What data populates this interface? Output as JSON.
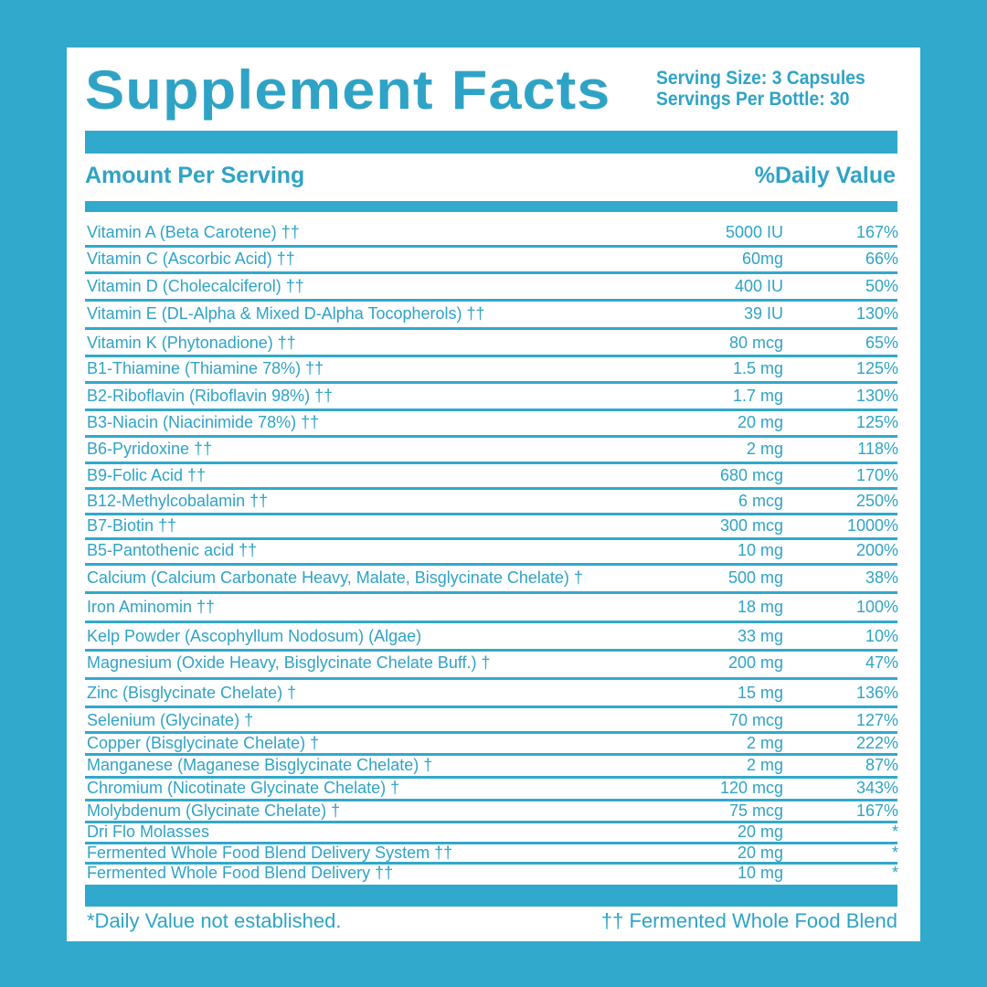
{
  "header": {
    "title": "Supplement Facts",
    "serving_size": "Serving Size: 3 Capsules",
    "servings_per_bottle": "Servings Per Bottle: 30"
  },
  "table": {
    "columns": [
      "Amount Per Serving",
      "%Daily Value"
    ],
    "rows": [
      [
        "Vitamin A (Beta Carotene) ††",
        "5000 IU",
        "167%"
      ],
      [
        "Vitamin C (Ascorbic Acid) ††",
        "60mg",
        "66%"
      ],
      [
        "Vitamin D (Cholecalciferol) ††",
        "400 IU",
        "50%"
      ],
      [
        "Vitamin E (DL-Alpha & Mixed D-Alpha Tocopherols) ††",
        "39 IU",
        "130%"
      ],
      [
        "Vitamin K (Phytonadione) ††",
        "80 mcg",
        "65%"
      ],
      [
        "B1-Thiamine (Thiamine 78%) ††",
        "1.5 mg",
        "125%"
      ],
      [
        "B2-Riboflavin (Riboflavin 98%) ††",
        "1.7 mg",
        "130%"
      ],
      [
        "B3-Niacin (Niacinimide 78%) ††",
        "20 mg",
        "125%"
      ],
      [
        "B6-Pyridoxine ††",
        "2 mg",
        "118%"
      ],
      [
        "B9-Folic Acid ††",
        "680 mcg",
        "170%"
      ],
      [
        "B12-Methylcobalamin ††",
        "6 mcg",
        "250%"
      ],
      [
        "B7-Biotin ††",
        "300 mcg",
        "1000%"
      ],
      [
        "B5-Pantothenic acid ††",
        "10 mg",
        "200%"
      ],
      [
        "Calcium (Calcium Carbonate Heavy, Malate, Bisglycinate Chelate) †",
        "500 mg",
        "38%"
      ],
      [
        "Iron Aminomin ††",
        "18 mg",
        "100%"
      ],
      [
        "Kelp Powder (Ascophyllum Nodosum) (Algae)",
        "33 mg",
        "10%"
      ],
      [
        "Magnesium (Oxide Heavy, Bisglycinate Chelate Buff.) †",
        "200 mg",
        "47%"
      ],
      [
        "Zinc (Bisglycinate Chelate) †",
        "15 mg",
        "136%"
      ],
      [
        "Selenium (Glycinate) †",
        "70 mcg",
        "127%"
      ],
      [
        "Copper (Bisglycinate Chelate) †",
        "2 mg",
        "222%"
      ],
      [
        "Manganese (Maganese Bisglycinate Chelate) †",
        "2 mg",
        "87%"
      ],
      [
        "Chromium (Nicotinate Glycinate Chelate) †",
        "120 mcg",
        "343%"
      ],
      [
        "Molybdenum (Glycinate Chelate) †",
        "75 mcg",
        "167%"
      ],
      [
        "Dri Flo Molasses",
        "20 mg",
        "*"
      ],
      [
        "Fermented Whole Food Blend Delivery System ††",
        "20 mg",
        "*"
      ],
      [
        "Fermented Whole Food Blend Delivery ††",
        "10 mg",
        "*"
      ]
    ]
  },
  "footer": {
    "note_left": "*Daily Value not established.",
    "note_right": "†† Fermented Whole Food Blend"
  }
}
